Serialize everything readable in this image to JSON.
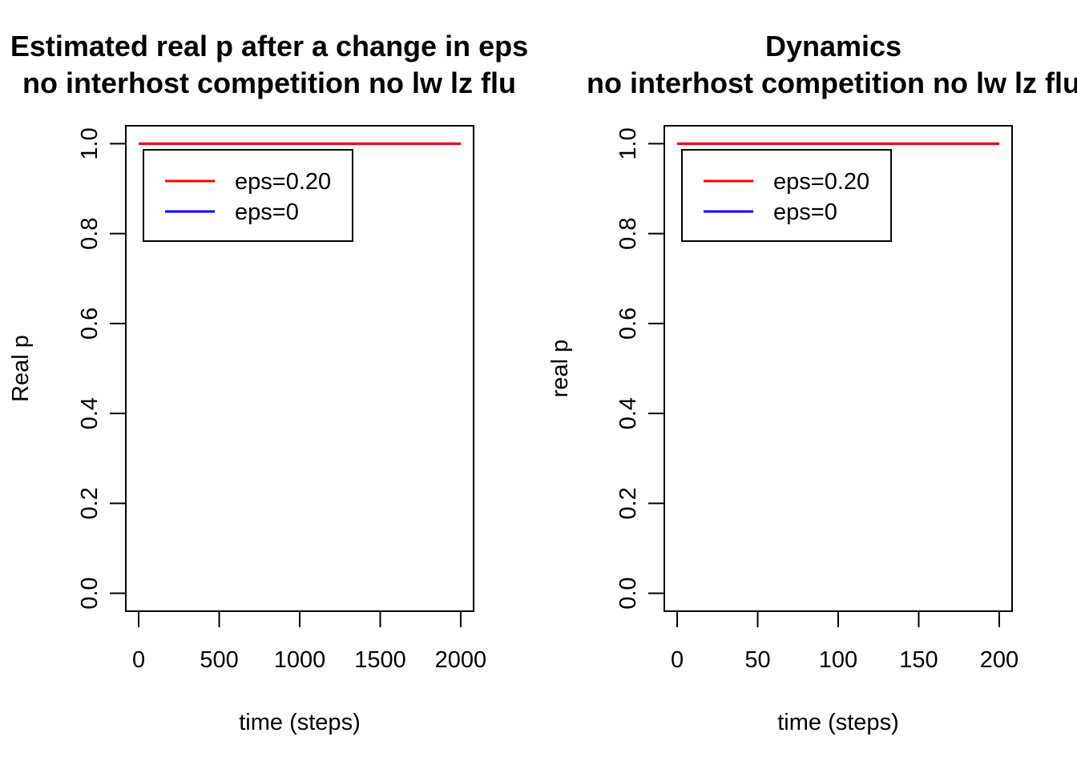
{
  "chart_data": [
    {
      "type": "line",
      "title": "Estimated real p after a change in eps",
      "subtitle": "no interhost competition no lw lz flu",
      "xlabel": "time (steps)",
      "ylabel": "Real p",
      "xlim": [
        0,
        2000
      ],
      "ylim": [
        0,
        1
      ],
      "xticks": [
        "0",
        "500",
        "1000",
        "1500",
        "2000"
      ],
      "yticks": [
        "0.0",
        "0.2",
        "0.4",
        "0.6",
        "0.8",
        "1.0"
      ],
      "legend": {
        "placement": "top-left"
      },
      "series": [
        {
          "name": "eps=0.20",
          "color": "#ff0000",
          "x": [
            0,
            2000
          ],
          "y": [
            1,
            1
          ]
        },
        {
          "name": "eps=0",
          "color": "#0000ff",
          "x": [
            0,
            2000
          ],
          "y": [
            1,
            1
          ]
        }
      ]
    },
    {
      "type": "line",
      "title": "Dynamics",
      "subtitle": "no interhost competition no lw lz flu",
      "xlabel": "time (steps)",
      "ylabel": "real p",
      "xlim": [
        0,
        200
      ],
      "ylim": [
        0,
        1
      ],
      "xticks": [
        "0",
        "50",
        "100",
        "150",
        "200"
      ],
      "yticks": [
        "0.0",
        "0.2",
        "0.4",
        "0.6",
        "0.8",
        "1.0"
      ],
      "legend": {
        "placement": "top-left"
      },
      "series": [
        {
          "name": "eps=0.20",
          "color": "#ff0000",
          "x": [
            0,
            200
          ],
          "y": [
            1,
            1
          ]
        },
        {
          "name": "eps=0",
          "color": "#0000ff",
          "x": [
            0,
            200
          ],
          "y": [
            1,
            1
          ]
        }
      ]
    }
  ]
}
